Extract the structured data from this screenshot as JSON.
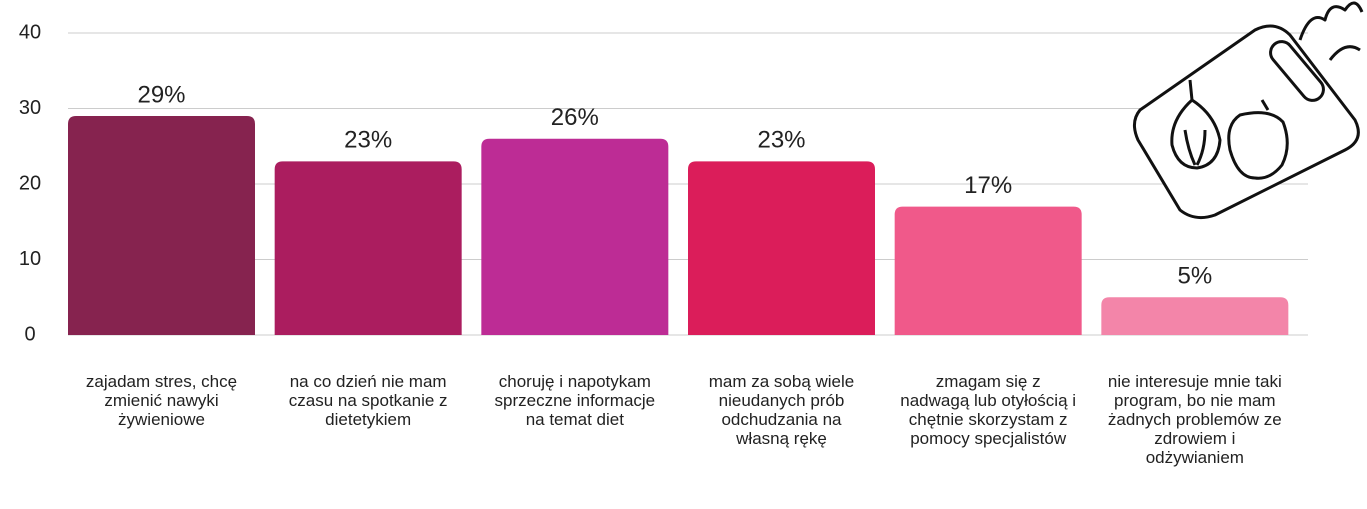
{
  "chart_data": {
    "type": "bar",
    "categories": [
      "zajadam stres, chcę zmienić nawyki żywieniowe",
      "na co dzień nie mam czasu na spotkanie z dietetykiem",
      "choruję i napotykam sprzeczne informacje na temat diet",
      "mam za sobą wiele nieudanych prób odchudzania na własną rękę",
      "zmagam się z nadwagą lub otyłością i chętnie skorzystam z pomocy specjalistów",
      "nie interesuje mnie taki program, bo nie mam żadnych problemów ze zdrowiem i odżywianiem"
    ],
    "values": [
      29,
      23,
      26,
      23,
      17,
      5
    ],
    "value_labels": [
      "29%",
      "23%",
      "26%",
      "23%",
      "17%",
      "5%"
    ],
    "colors": [
      "#86234f",
      "#ab1d5f",
      "#bd2c95",
      "#db1d5a",
      "#f0598a",
      "#f385a9"
    ],
    "ylim": [
      0,
      40
    ],
    "yticks": [
      0,
      10,
      20,
      30,
      40
    ],
    "grid": true
  }
}
